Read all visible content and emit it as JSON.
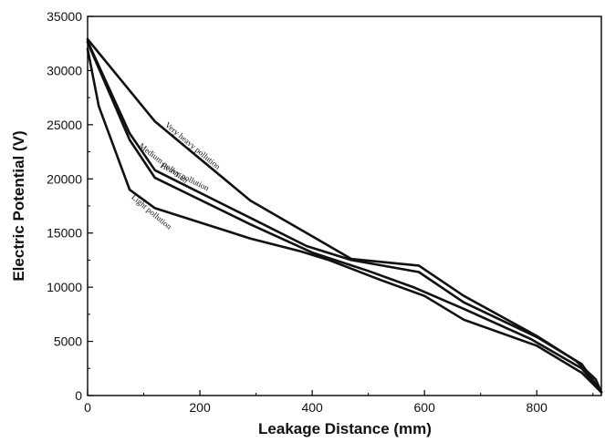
{
  "chart_data": {
    "type": "line",
    "title": "",
    "xlabel": "Leakage Distance (mm)",
    "ylabel": "Electric Potential (V)",
    "xlim": [
      0,
      915
    ],
    "ylim": [
      0,
      35000
    ],
    "xticks": [
      "0",
      "200",
      "400",
      "600",
      "800"
    ],
    "yticks": [
      "0",
      "5000",
      "10000",
      "15000",
      "20000",
      "25000",
      "30000",
      "35000"
    ],
    "grid": false,
    "legend": "inline labels along curves",
    "series": [
      {
        "name": "Very heavy pollution",
        "color": "#111111",
        "x": [
          0,
          120,
          290,
          380,
          470,
          590,
          670,
          800,
          870,
          905,
          915
        ],
        "y": [
          32900,
          25300,
          18000,
          15300,
          12600,
          12000,
          9200,
          5500,
          3200,
          1500,
          300
        ]
      },
      {
        "name": "Heavy pollution",
        "color": "#111111",
        "x": [
          0,
          75,
          120,
          290,
          390,
          470,
          590,
          670,
          800,
          880,
          915
        ],
        "y": [
          32700,
          24200,
          20800,
          16400,
          13800,
          12500,
          11400,
          8600,
          5400,
          2900,
          300
        ]
      },
      {
        "name": "Medium pollution",
        "color": "#111111",
        "x": [
          0,
          75,
          120,
          290,
          400,
          500,
          580,
          670,
          790,
          880,
          915
        ],
        "y": [
          32600,
          23600,
          20100,
          15800,
          13200,
          11500,
          10000,
          8000,
          5200,
          2500,
          300
        ]
      },
      {
        "name": "Light pollution",
        "color": "#111111",
        "x": [
          0,
          20,
          75,
          120,
          290,
          380,
          430,
          520,
          600,
          670,
          800,
          880,
          915
        ],
        "y": [
          32000,
          26700,
          19000,
          17300,
          14500,
          13300,
          12500,
          10700,
          9200,
          7000,
          4600,
          2100,
          300
        ]
      }
    ],
    "annotations": [
      {
        "text": "Very heavy pollution",
        "series": 0
      },
      {
        "text": "Heavy pollution",
        "series": 1
      },
      {
        "text": "Medium pollution",
        "series": 2
      },
      {
        "text": "Light pollution",
        "series": 3
      }
    ]
  }
}
